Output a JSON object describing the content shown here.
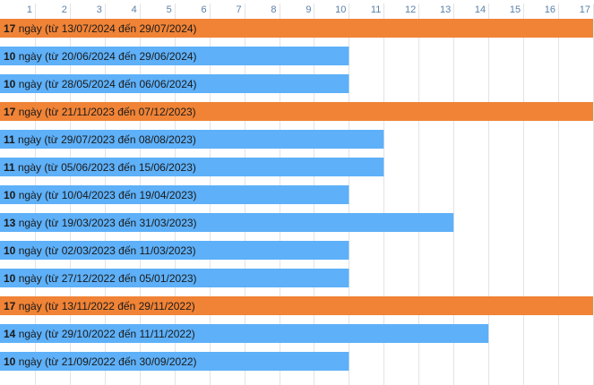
{
  "chart_data": {
    "type": "bar",
    "orientation": "horizontal",
    "x_ticks": [
      1,
      2,
      3,
      4,
      5,
      6,
      7,
      8,
      9,
      10,
      11,
      12,
      13,
      14,
      15,
      16,
      17
    ],
    "xlim": [
      0,
      17
    ],
    "grid": true,
    "colors": {
      "highlight": "#f08336",
      "normal": "#5eb0f8",
      "grid": "#e3e3e3",
      "tick": "#5a7fa8"
    },
    "bars": [
      {
        "value": 17,
        "label_num": "17",
        "label_text": " ngày (từ 13/07/2024 đến 29/07/2024)",
        "highlight": true
      },
      {
        "value": 10,
        "label_num": "10",
        "label_text": " ngày (từ 20/06/2024 đến 29/06/2024)",
        "highlight": false
      },
      {
        "value": 10,
        "label_num": "10",
        "label_text": " ngày (từ 28/05/2024 đến 06/06/2024)",
        "highlight": false
      },
      {
        "value": 17,
        "label_num": "17",
        "label_text": " ngày (từ 21/11/2023 đến 07/12/2023)",
        "highlight": true
      },
      {
        "value": 11,
        "label_num": "11",
        "label_text": " ngày (từ 29/07/2023 đến 08/08/2023)",
        "highlight": false
      },
      {
        "value": 11,
        "label_num": "11",
        "label_text": " ngày (từ 05/06/2023 đến 15/06/2023)",
        "highlight": false
      },
      {
        "value": 10,
        "label_num": "10",
        "label_text": " ngày (từ 10/04/2023 đến 19/04/2023)",
        "highlight": false
      },
      {
        "value": 13,
        "label_num": "13",
        "label_text": " ngày (từ 19/03/2023 đến 31/03/2023)",
        "highlight": false
      },
      {
        "value": 10,
        "label_num": "10",
        "label_text": " ngày (từ 02/03/2023 đến 11/03/2023)",
        "highlight": false
      },
      {
        "value": 10,
        "label_num": "10",
        "label_text": " ngày (từ 27/12/2022 đến 05/01/2023)",
        "highlight": false
      },
      {
        "value": 17,
        "label_num": "17",
        "label_text": " ngày (từ 13/11/2022 đến 29/11/2022)",
        "highlight": true
      },
      {
        "value": 14,
        "label_num": "14",
        "label_text": " ngày (từ 29/10/2022 đến 11/11/2022)",
        "highlight": false
      },
      {
        "value": 10,
        "label_num": "10",
        "label_text": " ngày (từ 21/09/2022 đến 30/09/2022)",
        "highlight": false
      }
    ]
  }
}
